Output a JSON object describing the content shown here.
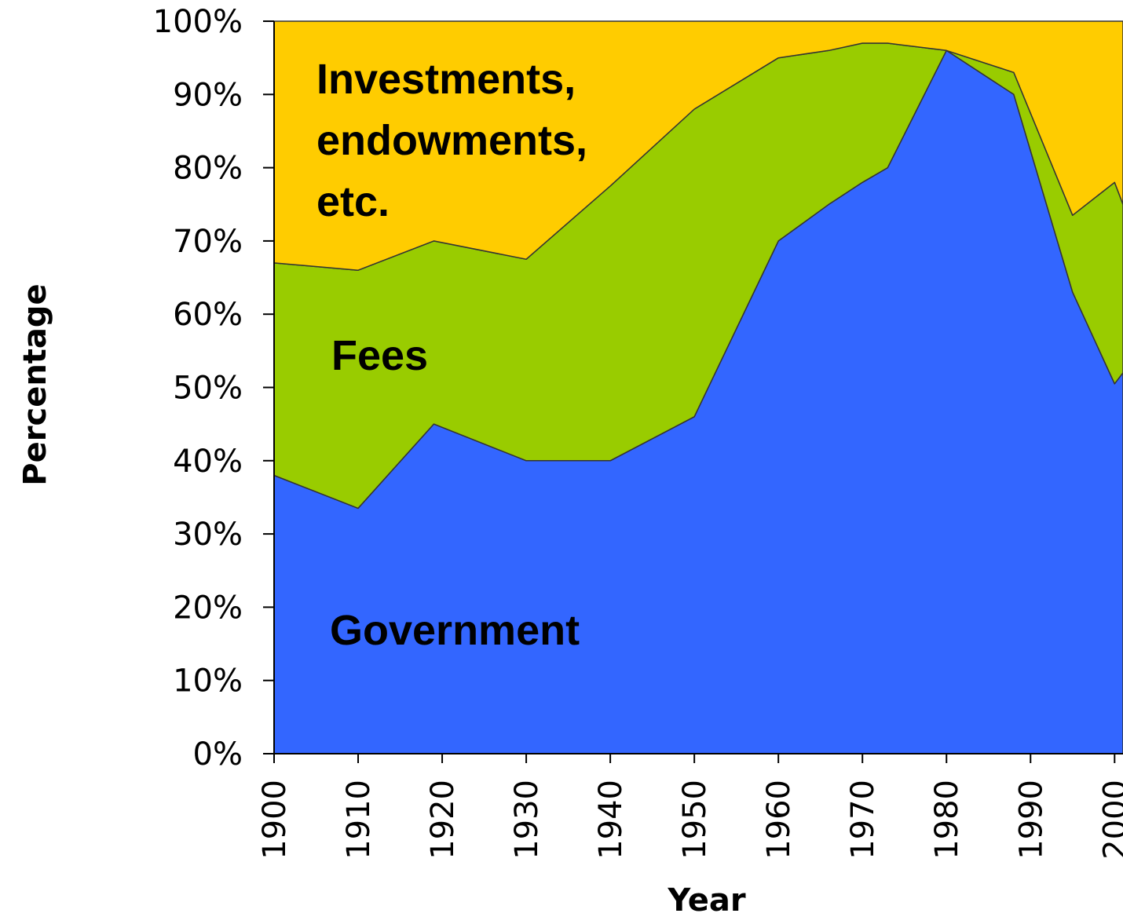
{
  "chart_data": {
    "type": "stacked_area",
    "x_label": "Year",
    "y_label": "Percentage",
    "x": [
      1900,
      1910,
      1919,
      1930,
      1940,
      1950,
      1960,
      1966,
      1970,
      1973,
      1980,
      1988,
      1995,
      2000,
      2001
    ],
    "series": [
      {
        "name": "Government",
        "color": "#3366ff",
        "values": [
          38,
          33.5,
          45,
          40,
          40,
          46,
          70,
          75,
          78,
          80,
          96,
          90,
          63,
          50.5,
          52
        ]
      },
      {
        "name": "Fees",
        "color": "#99cc00",
        "values": [
          29,
          32.5,
          25,
          27.5,
          37.5,
          42,
          25,
          21,
          19,
          17,
          0,
          3,
          10.5,
          27.5,
          23
        ]
      },
      {
        "name": "Investments, endowments, etc.",
        "color": "#ffcc00",
        "values": [
          33,
          34,
          30,
          32.5,
          22.5,
          12,
          5,
          4,
          3,
          3,
          4,
          7,
          26.5,
          22,
          25
        ]
      }
    ],
    "xlim": [
      1900,
      2001
    ],
    "xticks": [
      1900,
      1910,
      1920,
      1930,
      1940,
      1950,
      1960,
      1970,
      1980,
      1990,
      2000
    ],
    "ylim": [
      0,
      100
    ],
    "yticks": [
      {
        "value": 0,
        "label": "0%"
      },
      {
        "value": 10,
        "label": "10%"
      },
      {
        "value": 20,
        "label": "20%"
      },
      {
        "value": 30,
        "label": "30%"
      },
      {
        "value": 40,
        "label": "40%"
      },
      {
        "value": 50,
        "label": "50%"
      },
      {
        "value": 60,
        "label": "60%"
      },
      {
        "value": 70,
        "label": "70%"
      },
      {
        "value": 80,
        "label": "80%"
      },
      {
        "value": 90,
        "label": "90%"
      },
      {
        "value": 100,
        "label": "100%"
      }
    ]
  }
}
